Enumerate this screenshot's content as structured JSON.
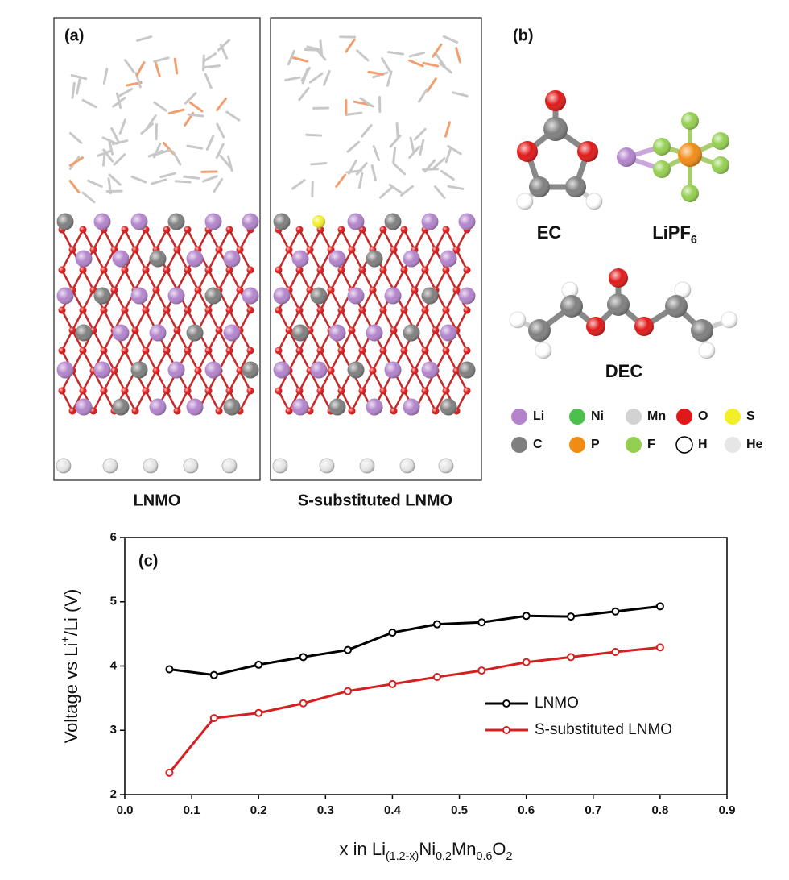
{
  "panel_a": {
    "label": "(a)",
    "captions": [
      "LNMO",
      "S-substituted LNMO"
    ]
  },
  "panel_b": {
    "label": "(b)",
    "molecules": [
      {
        "parts": [
          {
            "text": "EC"
          }
        ]
      },
      {
        "parts": [
          {
            "text": "LiPF"
          },
          {
            "text": "6",
            "sub": true
          }
        ]
      },
      {
        "parts": [
          {
            "text": "DEC"
          }
        ]
      }
    ],
    "elements": [
      {
        "name": "Li",
        "color": "#b384cc"
      },
      {
        "name": "Ni",
        "color": "#4cbf4c"
      },
      {
        "name": "Mn",
        "color": "#d2d2d2"
      },
      {
        "name": "O",
        "color": "#e01818"
      },
      {
        "name": "S",
        "color": "#f2ee2a"
      },
      {
        "name": "C",
        "color": "#7f7f7f"
      },
      {
        "name": "P",
        "color": "#f08c14"
      },
      {
        "name": "F",
        "color": "#94d050"
      },
      {
        "name": "H",
        "color": "#ffffff"
      },
      {
        "name": "He",
        "color": "#e6e6e6"
      }
    ]
  },
  "chart_data": {
    "type": "line",
    "panel_label": "(c)",
    "x_label_parts": [
      {
        "text": "x in Li"
      },
      {
        "text": "(1.2-x)",
        "sub": true
      },
      {
        "text": "Ni"
      },
      {
        "text": "0.2",
        "sub": true
      },
      {
        "text": "Mn"
      },
      {
        "text": "0.6",
        "sub": true
      },
      {
        "text": "O"
      },
      {
        "text": "2",
        "sub": true
      }
    ],
    "y_label_parts": [
      {
        "text": "Voltage vs Li"
      },
      {
        "text": "+",
        "sup": true
      },
      {
        "text": "/Li (V)"
      }
    ],
    "x": [
      0.0667,
      0.1333,
      0.2,
      0.2667,
      0.3333,
      0.4,
      0.4667,
      0.5333,
      0.6,
      0.6667,
      0.7333,
      0.8
    ],
    "series": [
      {
        "name": "LNMO",
        "color": "#000000",
        "values": [
          3.95,
          3.86,
          4.02,
          4.14,
          4.25,
          4.52,
          4.65,
          4.68,
          4.78,
          4.77,
          4.85,
          4.93
        ]
      },
      {
        "name": "S-substituted LNMO",
        "color": "#d42020",
        "values": [
          2.34,
          3.19,
          3.27,
          3.42,
          3.61,
          3.72,
          3.83,
          3.93,
          4.06,
          4.14,
          4.22,
          4.29
        ]
      }
    ],
    "xlim": [
      0,
      0.9
    ],
    "xticks": [
      {
        "value": 0,
        "label": "0.0"
      },
      0.1,
      0.2,
      0.3,
      0.4,
      0.5,
      0.6,
      0.7,
      0.8,
      0.9
    ],
    "ylim": [
      2,
      6
    ],
    "yticks": [
      2,
      3,
      4,
      5,
      6
    ],
    "legend": "lower right",
    "grid": false
  }
}
